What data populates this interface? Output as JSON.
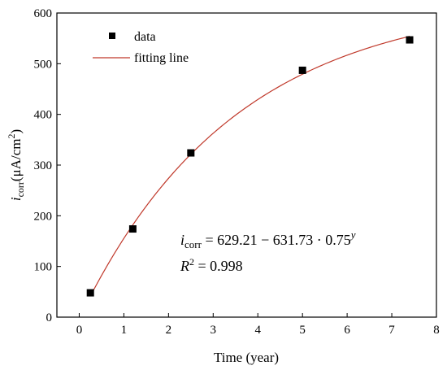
{
  "chart_data": {
    "type": "scatter",
    "xlabel": "Time (year)",
    "ylabel_main": "i",
    "ylabel_sub": "corr",
    "ylabel_unit": "(μA/cm",
    "ylabel_sup": "2",
    "ylabel_close": ")",
    "xlim": [
      -0.5,
      8
    ],
    "ylim": [
      0,
      600
    ],
    "xticks": [
      0,
      1,
      2,
      3,
      4,
      5,
      6,
      7,
      8
    ],
    "yticks": [
      0,
      100,
      200,
      300,
      400,
      500,
      600
    ],
    "series": [
      {
        "name": "data",
        "kind": "scatter",
        "marker": "square",
        "color": "#000000",
        "x": [
          0.25,
          1.2,
          2.5,
          5.0,
          7.4
        ],
        "y": [
          48,
          174,
          324,
          487,
          547
        ]
      },
      {
        "name": "fitting line",
        "kind": "line",
        "color": "#c0392b",
        "formula": {
          "a": 629.21,
          "b": 631.73,
          "base": 0.75
        },
        "x_range": [
          0.25,
          7.4
        ]
      }
    ],
    "legend": {
      "position": "top-left"
    },
    "annotations": {
      "equation": {
        "lhs_main": "i",
        "lhs_sub": "corr",
        "rhs": " = 629.21 − 631.73 · 0.75",
        "sup": "y"
      },
      "r2": {
        "main": "R",
        "sup": "2",
        "rest": " = 0.998"
      }
    }
  }
}
